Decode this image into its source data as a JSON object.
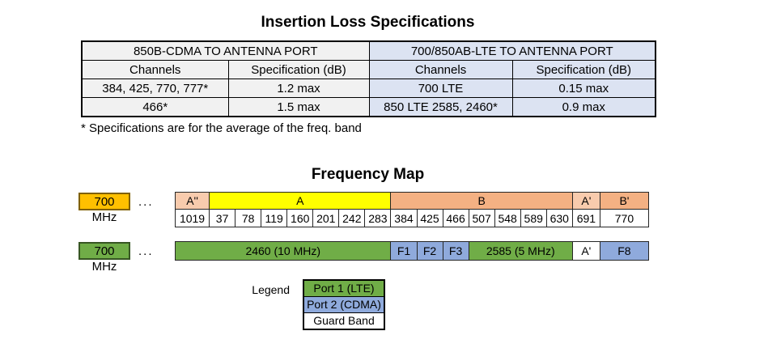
{
  "spec_section": {
    "title": "Insertion Loss Specifications",
    "table": {
      "group_headers": [
        "850B-CDMA TO ANTENNA PORT",
        "700/850AB-LTE TO ANTENNA PORT"
      ],
      "col_headers": [
        "Channels",
        "Specification (dB)",
        "Channels",
        "Specification (dB)"
      ],
      "rows": [
        [
          "384, 425, 770, 777*",
          "1.2 max",
          "700 LTE",
          "0.15 max"
        ],
        [
          "466*",
          "1.5 max",
          "850 LTE 2585, 2460*",
          "0.9 max"
        ]
      ],
      "group_colors": [
        "#F1F1F1",
        "#DCE3F2"
      ]
    },
    "footnote": "* Specifications are for the average of the freq. band"
  },
  "frequency_map": {
    "title": "Frequency Map",
    "rows": [
      {
        "label": "700 MHz",
        "label_bg": "#FFC000",
        "label_border": "#7F6000",
        "dots": "...",
        "bands": [
          {
            "label": "A''",
            "span": 1,
            "color": "#F8CBAD"
          },
          {
            "label": "A",
            "span": 7,
            "color": "#FFFF00"
          },
          {
            "label": "B",
            "span": 7,
            "color": "#F4B183"
          },
          {
            "label": "A'",
            "span": 1,
            "color": "#F8CBAD"
          },
          {
            "label": "B'",
            "span": 1,
            "color": "#F4B183"
          }
        ],
        "channels": [
          "1019",
          "37",
          "78",
          "119",
          "160",
          "201",
          "242",
          "283",
          "384",
          "425",
          "466",
          "507",
          "548",
          "589",
          "630",
          "691",
          "770"
        ]
      },
      {
        "label": "700 MHz",
        "label_bg": "#70AD47",
        "label_border": "#375623",
        "dots": "...",
        "segments": [
          {
            "label": "2460 (10 MHz)",
            "span": 8,
            "color": "#70AD47"
          },
          {
            "label": "F1",
            "span": 1,
            "color": "#8FAADC"
          },
          {
            "label": "F2",
            "span": 1,
            "color": "#8FAADC"
          },
          {
            "label": "F3",
            "span": 1,
            "color": "#8FAADC"
          },
          {
            "label": "2585 (5 MHz)",
            "span": 4,
            "color": "#70AD47"
          },
          {
            "label": "A'",
            "span": 1,
            "color": "#FFFFFF"
          },
          {
            "label": "F8",
            "span": 1,
            "color": "#8FAADC"
          }
        ]
      }
    ],
    "legend": {
      "label": "Legend",
      "items": [
        {
          "text": "Port 1 (LTE)",
          "color": "#70AD47"
        },
        {
          "text": "Port 2 (CDMA)",
          "color": "#8FAADC"
        },
        {
          "text": "Guard Band",
          "color": "#FFFFFF"
        }
      ]
    }
  }
}
